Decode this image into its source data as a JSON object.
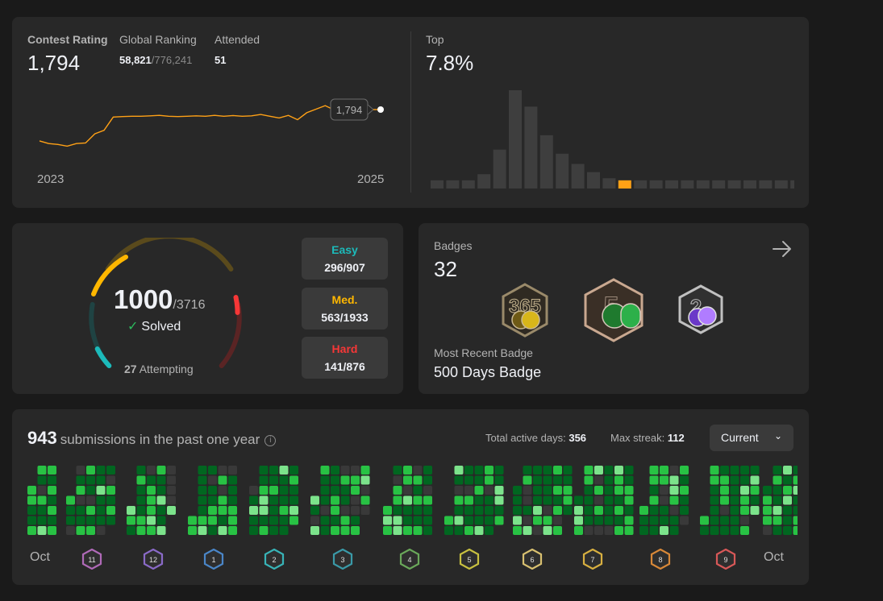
{
  "contest": {
    "rating_label": "Contest Rating",
    "rating_value": "1,794",
    "ranking_label": "Global Ranking",
    "ranking_value": "58,821",
    "ranking_total": "/776,241",
    "attended_label": "Attended",
    "attended_value": "51",
    "tooltip_value": "1,794",
    "year_start": "2023",
    "year_end": "2025",
    "rating_series": [
      1560,
      1545,
      1540,
      1530,
      1545,
      1548,
      1600,
      1620,
      1695,
      1698,
      1700,
      1700,
      1702,
      1705,
      1700,
      1698,
      1700,
      1702,
      1700,
      1705,
      1700,
      1704,
      1700,
      1702,
      1710,
      1700,
      1690,
      1705,
      1680,
      1720,
      1740,
      1760,
      1735,
      1775,
      1790,
      1794
    ],
    "top_label": "Top",
    "top_value": "7.8%",
    "histogram": [
      4,
      4,
      4,
      7,
      19,
      48,
      40,
      26,
      17,
      12,
      8,
      5,
      4,
      4,
      4,
      4,
      4,
      4,
      4,
      4,
      4,
      4,
      4,
      4
    ],
    "histogram_highlight_index": 12
  },
  "solved": {
    "solved_count": "1000",
    "total": "/3716",
    "solved_label": "Solved",
    "attempting_count": "27",
    "attempting_label": "Attempting",
    "easy_label": "Easy",
    "easy_value": "296/907",
    "medium_label": "Med.",
    "medium_value": "563/1933",
    "hard_label": "Hard",
    "hard_value": "141/876",
    "colors": {
      "easy": "#1cbaba",
      "medium": "#ffb700",
      "hard": "#f63737"
    }
  },
  "badges": {
    "label": "Badges",
    "count": "32",
    "recent_label": "Most Recent Badge",
    "recent_value": "500 Days Badge",
    "items": [
      {
        "name": "365 Days Badge",
        "icon": "badge-365-icon"
      },
      {
        "name": "500 Days Badge",
        "icon": "badge-500-icon"
      },
      {
        "name": "200 Days Badge",
        "icon": "badge-200-icon"
      }
    ]
  },
  "submissions": {
    "count": "943",
    "title_text": "submissions in the past one year",
    "active_days_label": "Total active days:",
    "active_days_value": "356",
    "max_streak_label": "Max streak:",
    "max_streak_value": "112",
    "dropdown_value": "Current",
    "month_first": "Oct",
    "month_last": "Oct",
    "monthly_badges": [
      "11",
      "12",
      "1",
      "2",
      "3",
      "4",
      "5",
      "6",
      "7",
      "8",
      "9"
    ],
    "colors": {
      "level1": "#016620",
      "level2": "#28c244",
      "level3": "#7ce38b",
      "empty": "#393939"
    }
  }
}
